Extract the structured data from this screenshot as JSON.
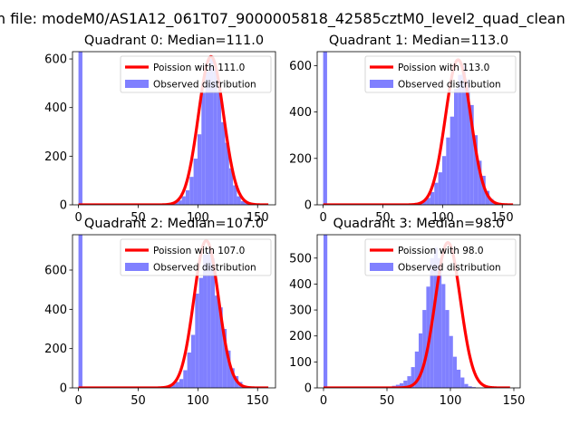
{
  "figure": {
    "suptitle": "n file: modeM0/AS1A12_061T07_9000005818_42585cztM0_level2_quad_clean"
  },
  "chart_data": [
    {
      "type": "bar",
      "title": "Quadrant 0: Median=111.0",
      "xlim": [
        -5,
        165
      ],
      "ylim": [
        0,
        630
      ],
      "xticks": [
        0,
        50,
        100,
        150
      ],
      "yticks": [
        0,
        200,
        400,
        600
      ],
      "hist_color": "#8080ff",
      "curve_color": "#ff0000",
      "legend": {
        "position": "upper right",
        "curve_label": "Poission with 111.0",
        "hist_label": "Observed distribution"
      },
      "series": [
        {
          "name": "Poission with 111.0",
          "kind": "poisson",
          "lambda": 111.0,
          "peak": 610,
          "x_range": [
            0,
            159
          ]
        },
        {
          "name": "Observed distribution",
          "kind": "histogram",
          "bin_width": 3.3,
          "zero_bin": {
            "x": 0,
            "value": 640
          },
          "bin_values_from_x": 70,
          "values": [
            3,
            5,
            8,
            12,
            18,
            35,
            60,
            115,
            190,
            290,
            460,
            550,
            600,
            560,
            470,
            340,
            255,
            150,
            80,
            35,
            15,
            8,
            4,
            2
          ]
        }
      ]
    },
    {
      "type": "bar",
      "title": "Quadrant 1: Median=113.0",
      "xlim": [
        -5,
        165
      ],
      "ylim": [
        0,
        660
      ],
      "xticks": [
        0,
        50,
        100,
        150
      ],
      "yticks": [
        0,
        200,
        400,
        600
      ],
      "hist_color": "#8080ff",
      "curve_color": "#ff0000",
      "legend": {
        "position": "upper right",
        "curve_label": "Poission with 113.0",
        "hist_label": "Observed distribution"
      },
      "series": [
        {
          "name": "Poission with 113.0",
          "kind": "poisson",
          "lambda": 113.0,
          "peak": 625,
          "x_range": [
            0,
            159
          ]
        },
        {
          "name": "Observed distribution",
          "kind": "histogram",
          "bin_width": 3.3,
          "zero_bin": {
            "x": 0,
            "value": 680
          },
          "bin_values_from_x": 70,
          "values": [
            3,
            5,
            8,
            12,
            18,
            30,
            55,
            95,
            140,
            210,
            290,
            380,
            500,
            560,
            600,
            540,
            430,
            300,
            190,
            125,
            60,
            25,
            8,
            3
          ]
        }
      ]
    },
    {
      "type": "bar",
      "title": "Quadrant 2: Median=107.0",
      "xlim": [
        -5,
        165
      ],
      "ylim": [
        0,
        780
      ],
      "xticks": [
        0,
        50,
        100,
        150
      ],
      "yticks": [
        0,
        200,
        400,
        600
      ],
      "hist_color": "#8080ff",
      "curve_color": "#ff0000",
      "legend": {
        "position": "upper right",
        "curve_label": "Poission with 107.0",
        "hist_label": "Observed distribution"
      },
      "series": [
        {
          "name": "Poission with 107.0",
          "kind": "poisson",
          "lambda": 107.0,
          "peak": 750,
          "x_range": [
            0,
            159
          ]
        },
        {
          "name": "Observed distribution",
          "kind": "histogram",
          "bin_width": 3.3,
          "zero_bin": {
            "x": 0,
            "value": 800
          },
          "bin_values_from_x": 68,
          "values": [
            3,
            6,
            10,
            18,
            30,
            45,
            90,
            180,
            270,
            480,
            560,
            680,
            700,
            660,
            470,
            410,
            300,
            190,
            100,
            60,
            30,
            12,
            5,
            2
          ]
        }
      ]
    },
    {
      "type": "bar",
      "title": "Quadrant 3: Median=98.0",
      "xlim": [
        -5,
        155
      ],
      "ylim": [
        0,
        590
      ],
      "xticks": [
        0,
        50,
        100,
        150
      ],
      "yticks": [
        0,
        100,
        200,
        300,
        400,
        500
      ],
      "hist_color": "#8080ff",
      "curve_color": "#ff0000",
      "legend": {
        "position": "upper right",
        "curve_label": "Poission with 98.0",
        "hist_label": "Observed distribution"
      },
      "series": [
        {
          "name": "Poission with 98.0",
          "kind": "poisson",
          "lambda": 98.0,
          "peak": 560,
          "x_range": [
            0,
            147
          ]
        },
        {
          "name": "Observed distribution",
          "kind": "histogram",
          "bin_width": 3.0,
          "zero_bin": {
            "x": 0,
            "value": 600
          },
          "bin_values_from_x": 45,
          "values": [
            2,
            3,
            5,
            8,
            12,
            18,
            28,
            45,
            80,
            140,
            210,
            300,
            390,
            500,
            540,
            500,
            400,
            300,
            200,
            120,
            70,
            40,
            15,
            6,
            3
          ]
        }
      ]
    }
  ]
}
